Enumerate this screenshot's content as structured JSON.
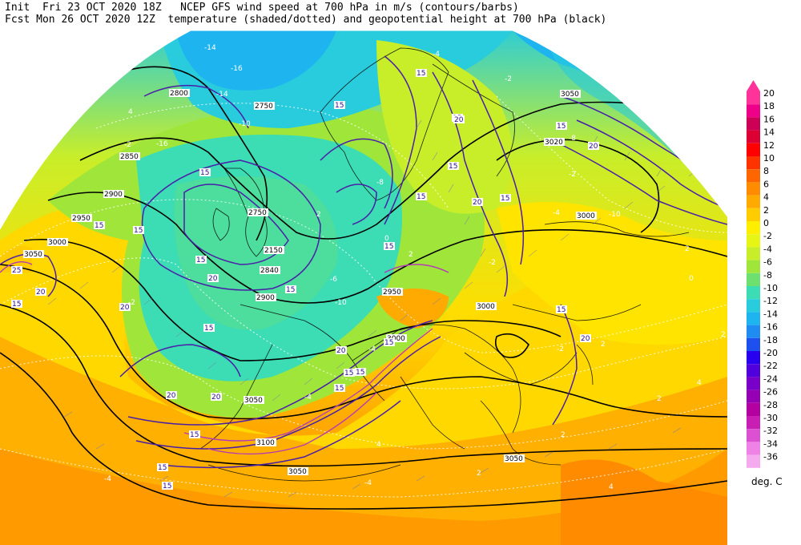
{
  "header": {
    "line1": "Init  Fri 23 OCT 2020 18Z   NCEP GFS wind speed at 700 hPa in m/s (contours/barbs)",
    "line2": "Fcst Mon 26 OCT 2020 12Z  temperature (shaded/dotted) and geopotential height at 700 hPa (black)"
  },
  "legend": {
    "unit": "deg. C",
    "levels": [
      "20",
      "18",
      "16",
      "14",
      "12",
      "10",
      "8",
      "6",
      "4",
      "2",
      "0",
      "-2",
      "-4",
      "-6",
      "-8",
      "-10",
      "-12",
      "-14",
      "-16",
      "-18",
      "-20",
      "-22",
      "-24",
      "-26",
      "-28",
      "-30",
      "-32",
      "-34",
      "-36"
    ],
    "colors": [
      "#ff3399",
      "#ee0088",
      "#cc0055",
      "#dd0033",
      "#ff0000",
      "#ff3300",
      "#ff6600",
      "#ff8c00",
      "#ffaa00",
      "#ffcc00",
      "#ffee00",
      "#e6f516",
      "#c8ee2a",
      "#a0e63a",
      "#6ee070",
      "#3cdcb4",
      "#28ccdc",
      "#1eb4f0",
      "#1e8cf0",
      "#1e50f0",
      "#2800f0",
      "#5000dc",
      "#7800c8",
      "#9600b4",
      "#b400a0",
      "#c81eb4",
      "#dc50d2",
      "#ee82e6",
      "#f5aaf0"
    ]
  },
  "map": {
    "height_labels": [
      "2800",
      "2750",
      "2850",
      "2900",
      "2950",
      "3000",
      "3050",
      "2750",
      "2150",
      "2840",
      "2900",
      "2950",
      "3000",
      "3050",
      "3100",
      "3050",
      "3000",
      "3020",
      "3050",
      "3000",
      "3050"
    ],
    "wind_labels": [
      "15",
      "15",
      "15",
      "20",
      "15",
      "20",
      "15",
      "15",
      "15",
      "15",
      "15",
      "20",
      "15",
      "20",
      "15",
      "20",
      "15",
      "15",
      "15",
      "20",
      "15",
      "20",
      "25",
      "15",
      "20",
      "15",
      "15",
      "15",
      "15",
      "15",
      "20",
      "20",
      "15",
      "15"
    ],
    "temp_labels": [
      "-14",
      "-14",
      "-10",
      "-16",
      "-2",
      "-8",
      "-6",
      "-10",
      "-2",
      "-4",
      "-4",
      "-2",
      "2",
      "4",
      "-4",
      "2",
      "2",
      "-2",
      "-4",
      "-8",
      "-16",
      "4",
      "-8",
      "2",
      "-2",
      "-10",
      "-4",
      "0",
      "0",
      "2",
      "-2",
      "-4",
      "2",
      "2",
      "4",
      "2",
      "4"
    ]
  }
}
